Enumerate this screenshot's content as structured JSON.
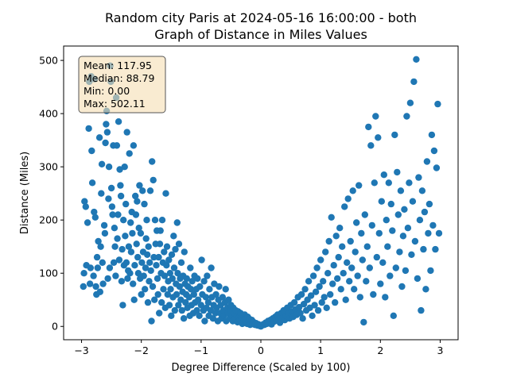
{
  "chart_data": {
    "type": "scatter",
    "title_line1": "Random city Paris at 2024-05-16 16:00:00  - both",
    "title_line2": "Graph of Distance in Miles Values",
    "xlabel": "Degree Difference (Scaled by 100)",
    "ylabel": "Distance (Miles)",
    "xlim": [
      -3.3,
      3.3
    ],
    "ylim": [
      -25,
      527
    ],
    "xticks": [
      {
        "value": -3,
        "label": "−3"
      },
      {
        "value": -2,
        "label": "−2"
      },
      {
        "value": -1,
        "label": "−1"
      },
      {
        "value": 0,
        "label": "0"
      },
      {
        "value": 1,
        "label": "1"
      },
      {
        "value": 2,
        "label": "2"
      },
      {
        "value": 3,
        "label": "3"
      }
    ],
    "yticks": [
      {
        "value": 0,
        "label": "0"
      },
      {
        "value": 100,
        "label": "100"
      },
      {
        "value": 200,
        "label": "200"
      },
      {
        "value": 300,
        "label": "300"
      },
      {
        "value": 400,
        "label": "400"
      },
      {
        "value": 500,
        "label": "500"
      }
    ],
    "grid": false,
    "marker_color": "#1f77b4",
    "stats_box": {
      "lines": [
        "Mean: 117.95",
        "Median: 88.79",
        "Min: 0.00",
        "Max: 502.11"
      ],
      "placement": "top-left",
      "background": "#f5deb3",
      "border": "#555555"
    },
    "points": [
      [
        -2.97,
        75
      ],
      [
        -2.96,
        100
      ],
      [
        -2.95,
        235
      ],
      [
        -2.93,
        225
      ],
      [
        -2.92,
        115
      ],
      [
        -2.9,
        195
      ],
      [
        -2.88,
        372
      ],
      [
        -2.87,
        460
      ],
      [
        -2.86,
        80
      ],
      [
        -2.85,
        110
      ],
      [
        -2.84,
        470
      ],
      [
        -2.83,
        330
      ],
      [
        -2.82,
        270
      ],
      [
        -2.8,
        95
      ],
      [
        -2.79,
        215
      ],
      [
        -2.78,
        465
      ],
      [
        -2.77,
        205
      ],
      [
        -2.76,
        75
      ],
      [
        -2.75,
        60
      ],
      [
        -2.74,
        130
      ],
      [
        -2.73,
        110
      ],
      [
        -2.72,
        160
      ],
      [
        -2.7,
        355
      ],
      [
        -2.69,
        65
      ],
      [
        -2.68,
        150
      ],
      [
        -2.67,
        250
      ],
      [
        -2.66,
        305
      ],
      [
        -2.65,
        120
      ],
      [
        -2.64,
        80
      ],
      [
        -2.62,
        190
      ],
      [
        -2.61,
        175
      ],
      [
        -2.6,
        345
      ],
      [
        -2.59,
        380
      ],
      [
        -2.58,
        405
      ],
      [
        -2.57,
        365
      ],
      [
        -2.56,
        90
      ],
      [
        -2.55,
        240
      ],
      [
        -2.54,
        300
      ],
      [
        -2.53,
        110
      ],
      [
        -2.52,
        490
      ],
      [
        -2.51,
        460
      ],
      [
        -2.5,
        260
      ],
      [
        -2.49,
        225
      ],
      [
        -2.48,
        210
      ],
      [
        -2.47,
        340
      ],
      [
        -2.46,
        120
      ],
      [
        -2.45,
        185
      ],
      [
        -2.44,
        150
      ],
      [
        -2.43,
        95
      ],
      [
        -2.42,
        430
      ],
      [
        -2.41,
        340
      ],
      [
        -2.4,
        165
      ],
      [
        -2.39,
        210
      ],
      [
        -2.38,
        385
      ],
      [
        -2.37,
        125
      ],
      [
        -2.36,
        295
      ],
      [
        -2.35,
        265
      ],
      [
        -2.34,
        245
      ],
      [
        -2.33,
        85
      ],
      [
        -2.32,
        145
      ],
      [
        -2.31,
        40
      ],
      [
        -2.3,
        200
      ],
      [
        -2.29,
        115
      ],
      [
        -2.28,
        300
      ],
      [
        -2.27,
        170
      ],
      [
        -2.26,
        230
      ],
      [
        -2.25,
        120
      ],
      [
        -2.24,
        365
      ],
      [
        -2.23,
        90
      ],
      [
        -2.22,
        105
      ],
      [
        -2.21,
        150
      ],
      [
        -2.2,
        325
      ],
      [
        -2.19,
        100
      ],
      [
        -2.18,
        195
      ],
      [
        -2.17,
        140
      ],
      [
        -2.16,
        215
      ],
      [
        -2.15,
        175
      ],
      [
        -2.14,
        80
      ],
      [
        -2.13,
        340
      ],
      [
        -2.12,
        50
      ],
      [
        -2.11,
        115
      ],
      [
        -2.1,
        245
      ],
      [
        -2.09,
        210
      ],
      [
        -2.08,
        155
      ],
      [
        -2.07,
        235
      ],
      [
        -2.06,
        130
      ],
      [
        -2.05,
        100
      ],
      [
        -2.04,
        185
      ],
      [
        -2.03,
        265
      ],
      [
        -2.02,
        90
      ],
      [
        -2.01,
        175
      ],
      [
        -2.0,
        60
      ],
      [
        -1.99,
        120
      ],
      [
        -1.98,
        255
      ],
      [
        -1.97,
        140
      ],
      [
        -1.96,
        95
      ],
      [
        -1.95,
        230
      ],
      [
        -1.94,
        70
      ],
      [
        -1.93,
        110
      ],
      [
        -1.92,
        165
      ],
      [
        -1.91,
        200
      ],
      [
        -1.9,
        135
      ],
      [
        -1.89,
        45
      ],
      [
        -1.88,
        150
      ],
      [
        -1.87,
        85
      ],
      [
        -1.86,
        120
      ],
      [
        -1.85,
        255
      ],
      [
        -1.84,
        105
      ],
      [
        -1.83,
        10
      ],
      [
        -1.82,
        310
      ],
      [
        -1.81,
        75
      ],
      [
        -1.8,
        275
      ],
      [
        -1.79,
        130
      ],
      [
        -1.78,
        50
      ],
      [
        -1.77,
        200
      ],
      [
        -1.76,
        155
      ],
      [
        -1.75,
        115
      ],
      [
        -1.74,
        180
      ],
      [
        -1.73,
        90
      ],
      [
        -1.72,
        60
      ],
      [
        -1.71,
        130
      ],
      [
        -1.7,
        25
      ],
      [
        -1.69,
        155
      ],
      [
        -1.68,
        180
      ],
      [
        -1.67,
        100
      ],
      [
        -1.66,
        45
      ],
      [
        -1.65,
        200
      ],
      [
        -1.64,
        120
      ],
      [
        -1.63,
        70
      ],
      [
        -1.62,
        140
      ],
      [
        -1.61,
        95
      ],
      [
        -1.6,
        35
      ],
      [
        -1.59,
        250
      ],
      [
        -1.58,
        115
      ],
      [
        -1.57,
        150
      ],
      [
        -1.56,
        60
      ],
      [
        -1.55,
        85
      ],
      [
        -1.54,
        125
      ],
      [
        -1.53,
        40
      ],
      [
        -1.52,
        100
      ],
      [
        -1.51,
        70
      ],
      [
        -1.5,
        20
      ],
      [
        -1.49,
        135
      ],
      [
        -1.48,
        90
      ],
      [
        -1.47,
        55
      ],
      [
        -1.46,
        170
      ],
      [
        -1.45,
        110
      ],
      [
        -1.44,
        30
      ],
      [
        -1.43,
        145
      ],
      [
        -1.42,
        80
      ],
      [
        -1.41,
        60
      ],
      [
        -1.4,
        195
      ],
      [
        -1.39,
        100
      ],
      [
        -1.38,
        40
      ],
      [
        -1.37,
        155
      ],
      [
        -1.36,
        75
      ],
      [
        -1.35,
        90
      ],
      [
        -1.34,
        50
      ],
      [
        -1.33,
        120
      ],
      [
        -1.32,
        30
      ],
      [
        -1.31,
        65
      ],
      [
        -1.3,
        95
      ],
      [
        -1.29,
        15
      ],
      [
        -1.28,
        140
      ],
      [
        -1.27,
        80
      ],
      [
        -1.26,
        45
      ],
      [
        -1.25,
        60
      ],
      [
        -1.24,
        90
      ],
      [
        -1.23,
        35
      ],
      [
        -1.22,
        75
      ],
      [
        -1.2,
        55
      ],
      [
        -1.19,
        20
      ],
      [
        -1.18,
        110
      ],
      [
        -1.17,
        70
      ],
      [
        -1.16,
        40
      ],
      [
        -1.15,
        85
      ],
      [
        -1.13,
        25
      ],
      [
        -1.12,
        60
      ],
      [
        -1.11,
        95
      ],
      [
        -1.1,
        45
      ],
      [
        -1.08,
        70
      ],
      [
        -1.07,
        30
      ],
      [
        -1.06,
        90
      ],
      [
        -1.05,
        50
      ],
      [
        -1.03,
        20
      ],
      [
        -1.02,
        75
      ],
      [
        -1.0,
        40
      ],
      [
        -0.99,
        125
      ],
      [
        -0.98,
        60
      ],
      [
        -0.96,
        30
      ],
      [
        -0.95,
        85
      ],
      [
        -0.94,
        10
      ],
      [
        -0.92,
        55
      ],
      [
        -0.91,
        35
      ],
      [
        -0.9,
        95
      ],
      [
        -0.88,
        45
      ],
      [
        -0.87,
        20
      ],
      [
        -0.86,
        70
      ],
      [
        -0.84,
        30
      ],
      [
        -0.83,
        110
      ],
      [
        -0.82,
        55
      ],
      [
        -0.8,
        15
      ],
      [
        -0.79,
        40
      ],
      [
        -0.78,
        80
      ],
      [
        -0.76,
        25
      ],
      [
        -0.75,
        60
      ],
      [
        -0.74,
        35
      ],
      [
        -0.72,
        10
      ],
      [
        -0.71,
        50
      ],
      [
        -0.7,
        75
      ],
      [
        -0.68,
        25
      ],
      [
        -0.67,
        40
      ],
      [
        -0.66,
        15
      ],
      [
        -0.64,
        55
      ],
      [
        -0.63,
        30
      ],
      [
        -0.62,
        20
      ],
      [
        -0.6,
        45
      ],
      [
        -0.59,
        70
      ],
      [
        -0.58,
        10
      ],
      [
        -0.56,
        35
      ],
      [
        -0.55,
        25
      ],
      [
        -0.54,
        50
      ],
      [
        -0.52,
        15
      ],
      [
        -0.51,
        30
      ],
      [
        -0.5,
        40
      ],
      [
        -0.48,
        20
      ],
      [
        -0.47,
        10
      ],
      [
        -0.46,
        35
      ],
      [
        -0.44,
        25
      ],
      [
        -0.43,
        15
      ],
      [
        -0.42,
        30
      ],
      [
        -0.4,
        20
      ],
      [
        -0.39,
        8
      ],
      [
        -0.38,
        28
      ],
      [
        -0.36,
        18
      ],
      [
        -0.35,
        12
      ],
      [
        -0.34,
        25
      ],
      [
        -0.32,
        15
      ],
      [
        -0.31,
        5
      ],
      [
        -0.3,
        20
      ],
      [
        -0.28,
        12
      ],
      [
        -0.27,
        22
      ],
      [
        -0.26,
        8
      ],
      [
        -0.24,
        15
      ],
      [
        -0.23,
        5
      ],
      [
        -0.22,
        18
      ],
      [
        -0.2,
        10
      ],
      [
        -0.19,
        14
      ],
      [
        -0.18,
        3
      ],
      [
        -0.16,
        9
      ],
      [
        -0.15,
        12
      ],
      [
        -0.14,
        5
      ],
      [
        -0.12,
        8
      ],
      [
        -0.1,
        3
      ],
      [
        -0.08,
        6
      ],
      [
        -0.06,
        2
      ],
      [
        -0.04,
        4
      ],
      [
        -0.02,
        1
      ],
      [
        0.0,
        0
      ],
      [
        0.02,
        2
      ],
      [
        0.04,
        4
      ],
      [
        0.06,
        3
      ],
      [
        0.08,
        7
      ],
      [
        0.1,
        5
      ],
      [
        0.12,
        10
      ],
      [
        0.14,
        6
      ],
      [
        0.16,
        12
      ],
      [
        0.18,
        4
      ],
      [
        0.2,
        15
      ],
      [
        0.22,
        9
      ],
      [
        0.24,
        18
      ],
      [
        0.26,
        11
      ],
      [
        0.28,
        22
      ],
      [
        0.3,
        14
      ],
      [
        0.32,
        7
      ],
      [
        0.34,
        25
      ],
      [
        0.36,
        16
      ],
      [
        0.38,
        30
      ],
      [
        0.4,
        12
      ],
      [
        0.42,
        20
      ],
      [
        0.44,
        35
      ],
      [
        0.46,
        24
      ],
      [
        0.48,
        15
      ],
      [
        0.5,
        40
      ],
      [
        0.52,
        28
      ],
      [
        0.54,
        18
      ],
      [
        0.56,
        45
      ],
      [
        0.58,
        32
      ],
      [
        0.6,
        22
      ],
      [
        0.62,
        55
      ],
      [
        0.64,
        36
      ],
      [
        0.66,
        25
      ],
      [
        0.68,
        60
      ],
      [
        0.7,
        15
      ],
      [
        0.72,
        42
      ],
      [
        0.74,
        70
      ],
      [
        0.76,
        30
      ],
      [
        0.78,
        50
      ],
      [
        0.8,
        85
      ],
      [
        0.82,
        35
      ],
      [
        0.84,
        58
      ],
      [
        0.86,
        20
      ],
      [
        0.88,
        95
      ],
      [
        0.9,
        40
      ],
      [
        0.92,
        65
      ],
      [
        0.94,
        110
      ],
      [
        0.96,
        30
      ],
      [
        0.98,
        75
      ],
      [
        1.0,
        125
      ],
      [
        1.02,
        45
      ],
      [
        1.04,
        85
      ],
      [
        1.06,
        55
      ],
      [
        1.08,
        140
      ],
      [
        1.1,
        35
      ],
      [
        1.12,
        100
      ],
      [
        1.14,
        160
      ],
      [
        1.16,
        60
      ],
      [
        1.18,
        205
      ],
      [
        1.2,
        80
      ],
      [
        1.22,
        115
      ],
      [
        1.24,
        45
      ],
      [
        1.26,
        170
      ],
      [
        1.28,
        90
      ],
      [
        1.3,
        130
      ],
      [
        1.32,
        185
      ],
      [
        1.34,
        70
      ],
      [
        1.36,
        150
      ],
      [
        1.38,
        100
      ],
      [
        1.4,
        225
      ],
      [
        1.42,
        50
      ],
      [
        1.44,
        120
      ],
      [
        1.46,
        240
      ],
      [
        1.48,
        85
      ],
      [
        1.5,
        160
      ],
      [
        1.52,
        110
      ],
      [
        1.54,
        255
      ],
      [
        1.56,
        70
      ],
      [
        1.58,
        140
      ],
      [
        1.6,
        195
      ],
      [
        1.62,
        95
      ],
      [
        1.64,
        265
      ],
      [
        1.66,
        55
      ],
      [
        1.68,
        175
      ],
      [
        1.7,
        125
      ],
      [
        1.72,
        8
      ],
      [
        1.74,
        210
      ],
      [
        1.76,
        85
      ],
      [
        1.78,
        150
      ],
      [
        1.8,
        375
      ],
      [
        1.82,
        110
      ],
      [
        1.84,
        340
      ],
      [
        1.86,
        190
      ],
      [
        1.88,
        60
      ],
      [
        1.9,
        270
      ],
      [
        1.92,
        395
      ],
      [
        1.94,
        130
      ],
      [
        1.96,
        355
      ],
      [
        1.98,
        175
      ],
      [
        2.0,
        80
      ],
      [
        2.02,
        235
      ],
      [
        2.04,
        120
      ],
      [
        2.06,
        285
      ],
      [
        2.08,
        55
      ],
      [
        2.1,
        200
      ],
      [
        2.12,
        150
      ],
      [
        2.14,
        270
      ],
      [
        2.16,
        95
      ],
      [
        2.18,
        230
      ],
      [
        2.2,
        180
      ],
      [
        2.22,
        20
      ],
      [
        2.24,
        360
      ],
      [
        2.26,
        110
      ],
      [
        2.28,
        290
      ],
      [
        2.3,
        210
      ],
      [
        2.32,
        140
      ],
      [
        2.34,
        255
      ],
      [
        2.36,
        75
      ],
      [
        2.38,
        170
      ],
      [
        2.4,
        220
      ],
      [
        2.42,
        105
      ],
      [
        2.44,
        395
      ],
      [
        2.46,
        185
      ],
      [
        2.48,
        270
      ],
      [
        2.5,
        420
      ],
      [
        2.52,
        135
      ],
      [
        2.54,
        235
      ],
      [
        2.56,
        460
      ],
      [
        2.58,
        160
      ],
      [
        2.6,
        502
      ],
      [
        2.62,
        90
      ],
      [
        2.64,
        280
      ],
      [
        2.66,
        200
      ],
      [
        2.68,
        30
      ],
      [
        2.7,
        255
      ],
      [
        2.72,
        145
      ],
      [
        2.74,
        215
      ],
      [
        2.76,
        70
      ],
      [
        2.78,
        310
      ],
      [
        2.8,
        175
      ],
      [
        2.82,
        230
      ],
      [
        2.84,
        105
      ],
      [
        2.86,
        360
      ],
      [
        2.88,
        190
      ],
      [
        2.9,
        330
      ],
      [
        2.92,
        145
      ],
      [
        2.94,
        298
      ],
      [
        2.96,
        418
      ],
      [
        2.98,
        175
      ]
    ]
  }
}
